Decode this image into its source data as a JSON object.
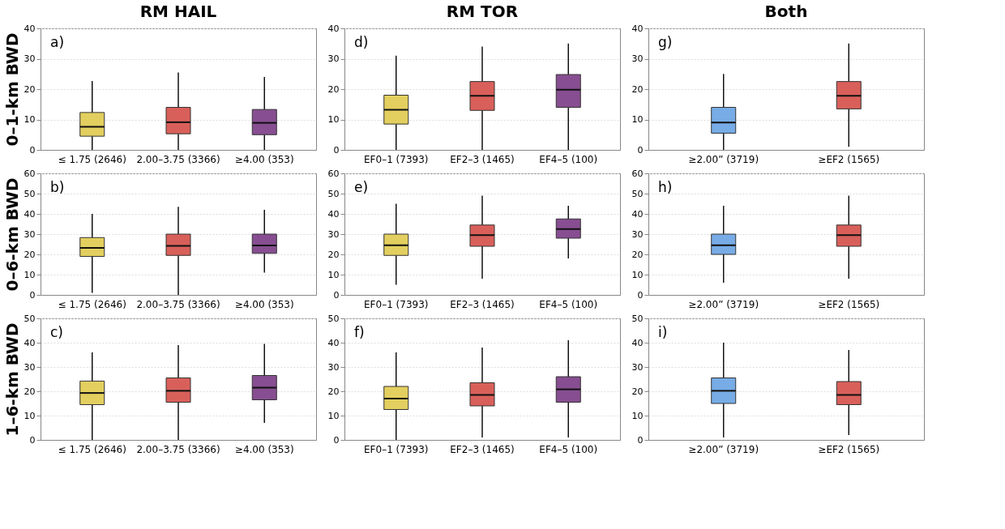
{
  "chart_data": [
    {
      "type": "box",
      "title": "RM HAIL",
      "ylabel": "0–1-km BWD",
      "annotations": [
        "a)"
      ],
      "categories": [
        "≤ 1.75 (2646)",
        "2.00–3.75 (3366)",
        "≥4.00 (353)"
      ],
      "colors": [
        "#e3cf5f",
        "#d9605a",
        "#874e91"
      ],
      "ylim": [
        0,
        40
      ],
      "yticks": [
        0,
        10,
        20,
        30,
        40
      ],
      "grid": "y",
      "boxes": [
        {
          "low": 0,
          "q1": 4.5,
          "median": 7.6,
          "q3": 12.3,
          "high": 22.7
        },
        {
          "low": 0,
          "q1": 5.3,
          "median": 9.1,
          "q3": 14,
          "high": 25.5
        },
        {
          "low": 0,
          "q1": 5,
          "median": 8.9,
          "q3": 13.3,
          "high": 24
        }
      ]
    },
    {
      "type": "box",
      "title": "RM TOR",
      "annotations": [
        "d)"
      ],
      "categories": [
        "EF0–1 (7393)",
        "EF2–3 (1465)",
        "EF4–5 (100)"
      ],
      "colors": [
        "#e3cf5f",
        "#d9605a",
        "#874e91"
      ],
      "ylim": [
        0,
        40
      ],
      "yticks": [
        0,
        10,
        20,
        30,
        40
      ],
      "grid": "y",
      "boxes": [
        {
          "low": 0,
          "q1": 8.5,
          "median": 13.2,
          "q3": 18,
          "high": 31
        },
        {
          "low": 0,
          "q1": 13,
          "median": 17.8,
          "q3": 22.5,
          "high": 34
        },
        {
          "low": 0,
          "q1": 14,
          "median": 19.8,
          "q3": 24.8,
          "high": 35
        }
      ]
    },
    {
      "type": "box",
      "title": "Both",
      "annotations": [
        "g)"
      ],
      "categories": [
        "≥2.00” (3719)",
        "≥EF2 (1565)"
      ],
      "colors": [
        "#77ace6",
        "#d9605a"
      ],
      "ylim": [
        0,
        40
      ],
      "yticks": [
        0,
        10,
        20,
        30,
        40
      ],
      "grid": "y",
      "boxes": [
        {
          "low": 0,
          "q1": 5.5,
          "median": 9,
          "q3": 14,
          "high": 25
        },
        {
          "low": 1,
          "q1": 13.5,
          "median": 17.8,
          "q3": 22.5,
          "high": 35
        }
      ]
    },
    {
      "type": "box",
      "ylabel": "0–6-km BWD",
      "annotations": [
        "b)"
      ],
      "categories": [
        "≤ 1.75 (2646)",
        "2.00–3.75 (3366)",
        "≥4.00 (353)"
      ],
      "colors": [
        "#e3cf5f",
        "#d9605a",
        "#874e91"
      ],
      "ylim": [
        0,
        60
      ],
      "yticks": [
        0,
        10,
        20,
        30,
        40,
        50,
        60
      ],
      "grid": "y",
      "boxes": [
        {
          "low": 1,
          "q1": 19,
          "median": 23.2,
          "q3": 28.3,
          "high": 40
        },
        {
          "low": 0,
          "q1": 19.5,
          "median": 24.2,
          "q3": 30,
          "high": 43.5
        },
        {
          "low": 11,
          "q1": 20.5,
          "median": 24.4,
          "q3": 30,
          "high": 42
        }
      ]
    },
    {
      "type": "box",
      "annotations": [
        "e)"
      ],
      "categories": [
        "EF0–1 (7393)",
        "EF2–3 (1465)",
        "EF4–5 (100)"
      ],
      "colors": [
        "#e3cf5f",
        "#d9605a",
        "#874e91"
      ],
      "ylim": [
        0,
        60
      ],
      "yticks": [
        0,
        10,
        20,
        30,
        40,
        50,
        60
      ],
      "grid": "y",
      "boxes": [
        {
          "low": 5,
          "q1": 19.5,
          "median": 24.5,
          "q3": 30,
          "high": 45
        },
        {
          "low": 8,
          "q1": 24,
          "median": 29.5,
          "q3": 34.5,
          "high": 49
        },
        {
          "low": 18,
          "q1": 28,
          "median": 32.5,
          "q3": 37.5,
          "high": 44
        }
      ]
    },
    {
      "type": "box",
      "annotations": [
        "h)"
      ],
      "categories": [
        "≥2.00” (3719)",
        "≥EF2 (1565)"
      ],
      "colors": [
        "#77ace6",
        "#d9605a"
      ],
      "ylim": [
        0,
        60
      ],
      "yticks": [
        0,
        10,
        20,
        30,
        40,
        50,
        60
      ],
      "grid": "y",
      "boxes": [
        {
          "low": 6,
          "q1": 20,
          "median": 24.5,
          "q3": 30,
          "high": 44
        },
        {
          "low": 8,
          "q1": 24,
          "median": 29.5,
          "q3": 34.5,
          "high": 49
        }
      ]
    },
    {
      "type": "box",
      "ylabel": "1–6-km BWD",
      "annotations": [
        "c)"
      ],
      "categories": [
        "≤ 1.75 (2646)",
        "2.00–3.75 (3366)",
        "≥4.00 (353)"
      ],
      "colors": [
        "#e3cf5f",
        "#d9605a",
        "#874e91"
      ],
      "ylim": [
        0,
        50
      ],
      "yticks": [
        0,
        10,
        20,
        30,
        40,
        50
      ],
      "grid": "y",
      "boxes": [
        {
          "low": 0,
          "q1": 14.5,
          "median": 19.3,
          "q3": 24.2,
          "high": 36
        },
        {
          "low": 0,
          "q1": 15.5,
          "median": 20.2,
          "q3": 25.5,
          "high": 39
        },
        {
          "low": 7,
          "q1": 16.5,
          "median": 21.5,
          "q3": 26.5,
          "high": 39.5
        }
      ]
    },
    {
      "type": "box",
      "annotations": [
        "f)"
      ],
      "categories": [
        "EF0–1 (7393)",
        "EF2–3 (1465)",
        "EF4–5 (100)"
      ],
      "colors": [
        "#e3cf5f",
        "#d9605a",
        "#874e91"
      ],
      "ylim": [
        0,
        50
      ],
      "yticks": [
        0,
        10,
        20,
        30,
        40,
        50
      ],
      "grid": "y",
      "boxes": [
        {
          "low": 0,
          "q1": 12.5,
          "median": 17,
          "q3": 22,
          "high": 36
        },
        {
          "low": 1,
          "q1": 14,
          "median": 18.5,
          "q3": 23.5,
          "high": 38
        },
        {
          "low": 1,
          "q1": 15.5,
          "median": 20.8,
          "q3": 26,
          "high": 41
        }
      ]
    },
    {
      "type": "box",
      "annotations": [
        "i)"
      ],
      "categories": [
        "≥2.00” (3719)",
        "≥EF2 (1565)"
      ],
      "colors": [
        "#77ace6",
        "#d9605a"
      ],
      "ylim": [
        0,
        50
      ],
      "yticks": [
        0,
        10,
        20,
        30,
        40,
        50
      ],
      "grid": "y",
      "boxes": [
        {
          "low": 1,
          "q1": 15,
          "median": 20.2,
          "q3": 25.5,
          "high": 40
        },
        {
          "low": 2,
          "q1": 14.5,
          "median": 18.5,
          "q3": 24,
          "high": 37
        }
      ]
    }
  ]
}
